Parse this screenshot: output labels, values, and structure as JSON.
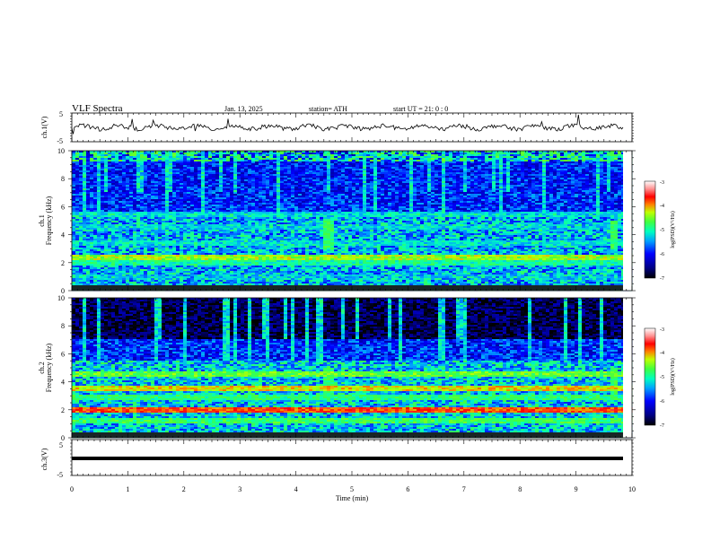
{
  "header": {
    "title": "VLF  Spectra",
    "date": "Jan.  13,  2025",
    "station": "station= ATH",
    "start": "start  UT  =   21: 0  : 0"
  },
  "chart_data": [
    {
      "type": "line",
      "name": "ch1-waveform",
      "ylabel": "ch.1(V)",
      "ylim": [
        -5,
        5
      ],
      "yticks": [
        "5",
        "-5"
      ],
      "xlim": [
        0,
        10
      ],
      "note": "noisy trace near 0 V with spikes"
    },
    {
      "type": "heatmap",
      "name": "ch1-spectrogram",
      "ylabel": "ch.1\nFrequency  (kHz)",
      "ylim": [
        0,
        10
      ],
      "yticks": [
        "10",
        "8",
        "6",
        "4",
        "2",
        "0"
      ],
      "xlim": [
        0,
        10
      ],
      "colorbar": {
        "label": "log(PSD)(V²/Hz)",
        "range": [
          -7,
          -3
        ],
        "ticks": [
          "-3",
          "-4",
          "-5",
          "-6",
          "-7"
        ]
      },
      "bands": [
        {
          "freq": 2.0,
          "level": -5.0
        },
        {
          "freq": 2.35,
          "level": -4.4
        },
        {
          "freq": 3.4,
          "level": -5.3
        },
        {
          "freq": 4.6,
          "level": -5.4
        },
        {
          "freq": 5.4,
          "level": -5.3
        },
        {
          "freq": 1.0,
          "level": -5.5
        }
      ],
      "bursts_min": [
        4.58,
        9.7
      ]
    },
    {
      "type": "heatmap",
      "name": "ch2-spectrogram",
      "ylabel": "ch.2\nFrequency  (kHz)",
      "ylim": [
        0,
        10
      ],
      "yticks": [
        "10",
        "8",
        "6",
        "4",
        "2",
        "0"
      ],
      "xlim": [
        0,
        10
      ],
      "colorbar": {
        "label": "log(PSD)(V²/Hz)",
        "range": [
          -7,
          -3
        ],
        "ticks": [
          "-3",
          "-4",
          "-5",
          "-6",
          "-7"
        ]
      },
      "bands": [
        {
          "freq": 2.0,
          "level": -3.8
        },
        {
          "freq": 3.5,
          "level": -4.2
        },
        {
          "freq": 4.5,
          "level": -4.6
        },
        {
          "freq": 2.9,
          "level": -4.9
        },
        {
          "freq": 1.2,
          "level": -4.8
        }
      ],
      "bursts_min": [
        4.58,
        9.7
      ]
    },
    {
      "type": "line",
      "name": "ch3-waveform",
      "ylabel": "ch.3(V)",
      "ylim": [
        -5,
        5
      ],
      "yticks": [
        "5",
        "0",
        "-5"
      ],
      "xlim": [
        0,
        10
      ],
      "xticks": [
        "0",
        "1",
        "2",
        "3",
        "4",
        "5",
        "6",
        "7",
        "8",
        "9",
        "10"
      ],
      "xlabel": "Time  (min)",
      "note": "flat trace at about -1 V"
    }
  ]
}
